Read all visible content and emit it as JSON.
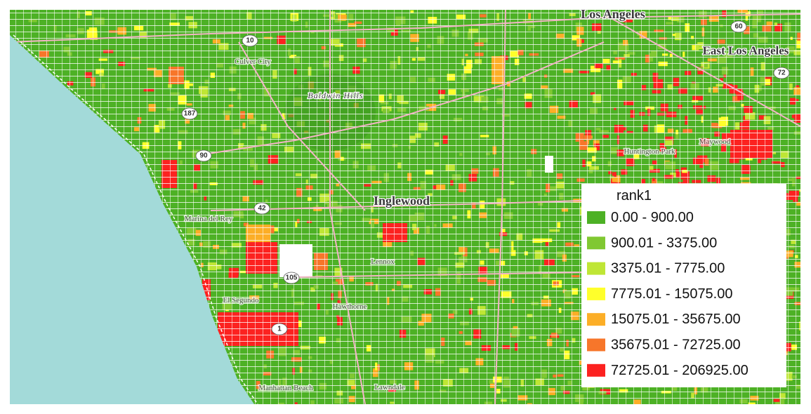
{
  "map": {
    "places": [
      "Los Angeles",
      "East Los Angeles",
      "Inglewood",
      "Baldwin Hills",
      "Culver City",
      "Marina del Rey",
      "Lennox",
      "Hawthorne",
      "El Segundo",
      "Manhattan Beach",
      "Lawndale",
      "Huntington Park",
      "Maywood"
    ],
    "routes": [
      "10",
      "60",
      "72",
      "187",
      "90",
      "42",
      "105",
      "1"
    ]
  },
  "legend": {
    "title": "rank1",
    "items": [
      {
        "label": "0.00 - 900.00",
        "color": "#4db125"
      },
      {
        "label": "900.01 - 3375.00",
        "color": "#80c832"
      },
      {
        "label": "3375.01 - 7775.00",
        "color": "#bfe635"
      },
      {
        "label": "7775.01 - 15075.00",
        "color": "#ffff2b"
      },
      {
        "label": "15075.01 - 35675.00",
        "color": "#fcae27"
      },
      {
        "label": "35675.01 - 72725.00",
        "color": "#f7762a"
      },
      {
        "label": "72725.01 - 206925.00",
        "color": "#fc2220"
      }
    ]
  }
}
